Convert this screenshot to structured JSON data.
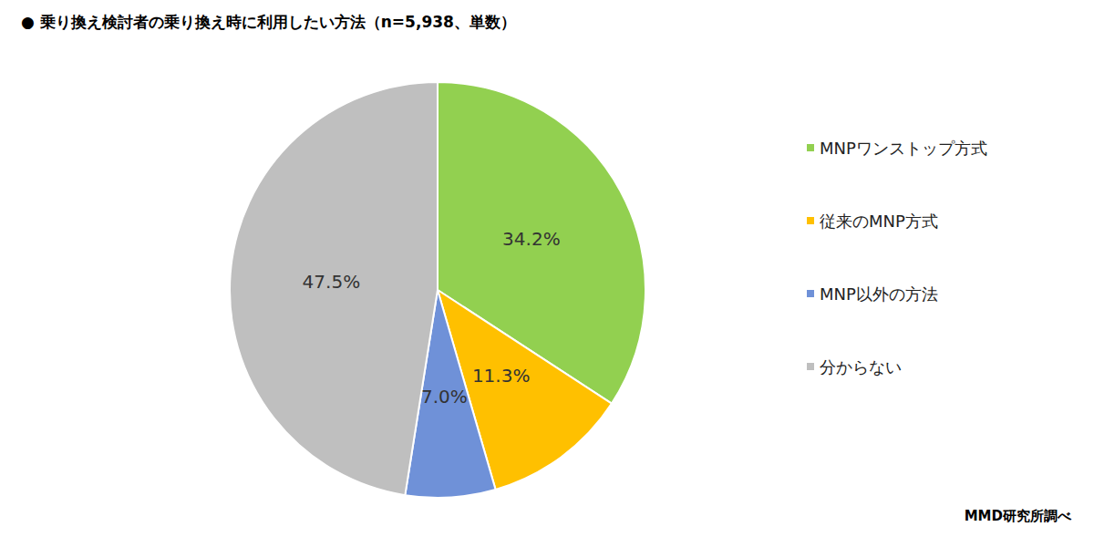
{
  "chart_data": {
    "type": "pie",
    "title": "● 乗り換え検討者の乗り換え時に利用したい方法（n=5,938、単数）",
    "categories": [
      "MNPワンストップ方式",
      "従来のMNP方式",
      "MNP以外の方法",
      "分からない"
    ],
    "values": [
      34.2,
      11.3,
      7.0,
      47.5
    ],
    "value_labels": [
      "34.2%",
      "11.3%",
      "7.0%",
      "47.5%"
    ],
    "colors": [
      "#92d050",
      "#ffc000",
      "#6f91d8",
      "#bfbfbf"
    ],
    "data_labels": true,
    "legend": "right",
    "annotations": [
      "MMD研究所調べ"
    ]
  }
}
